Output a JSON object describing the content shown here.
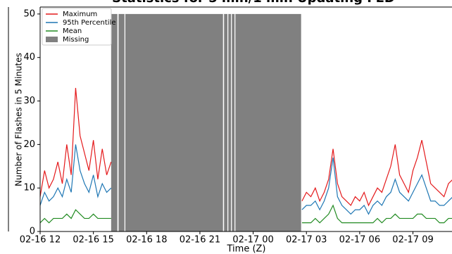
{
  "chart_data": {
    "type": "line",
    "title": "Statistics for 5 min/1 min Updating FED",
    "xlabel": "Time (Z)",
    "ylabel": "Number of Flashes in 5 Minutes",
    "x": [
      0,
      0.25,
      0.5,
      0.75,
      1,
      1.25,
      1.5,
      1.75,
      2,
      2.25,
      2.5,
      2.75,
      3,
      3.25,
      3.5,
      3.75,
      4,
      4.25,
      4.5,
      4.75,
      5,
      5.25,
      5.5,
      5.75,
      6,
      6.25,
      6.5,
      6.75,
      7,
      7.25,
      7.5,
      7.75,
      8,
      8.25,
      8.5,
      8.75,
      9,
      9.25,
      9.5,
      9.75,
      10,
      10.25,
      10.5,
      10.75,
      11,
      11.25,
      11.5,
      11.75,
      12,
      12.25,
      12.5,
      12.75,
      13,
      13.25,
      13.5,
      13.75,
      14,
      14.25,
      14.5,
      14.75,
      15,
      15.25,
      15.5,
      15.75,
      16,
      16.25,
      16.5,
      16.75,
      17,
      17.25,
      17.5,
      17.75,
      18,
      18.25,
      18.5,
      18.75,
      19,
      19.25,
      19.5,
      19.75,
      20,
      20.25,
      20.5,
      20.75,
      21,
      21.25,
      21.5,
      21.75,
      22,
      22.25,
      22.5,
      22.75,
      23,
      23.25
    ],
    "series": [
      {
        "name": "Maximum",
        "color": "#e41a1c",
        "values": [
          8,
          14,
          10,
          12,
          16,
          11,
          20,
          13,
          33,
          22,
          18,
          14,
          21,
          12,
          19,
          13,
          16,
          null,
          null,
          null,
          null,
          null,
          null,
          null,
          null,
          null,
          null,
          null,
          null,
          null,
          null,
          null,
          null,
          null,
          null,
          null,
          null,
          null,
          null,
          null,
          null,
          null,
          null,
          null,
          null,
          null,
          null,
          null,
          null,
          null,
          null,
          null,
          null,
          null,
          null,
          null,
          null,
          null,
          null,
          7,
          9,
          8,
          10,
          7,
          9,
          12,
          19,
          11,
          8,
          7,
          6,
          8,
          7,
          9,
          6,
          8,
          10,
          9,
          12,
          15,
          20,
          13,
          11,
          9,
          14,
          17,
          21,
          16,
          11,
          10,
          9,
          8,
          11,
          12
        ]
      },
      {
        "name": "95th Percentile",
        "color": "#1f77b4",
        "values": [
          6,
          9,
          7,
          8,
          10,
          8,
          12,
          9,
          20,
          14,
          11,
          9,
          13,
          8,
          11,
          9,
          10,
          null,
          null,
          null,
          null,
          null,
          null,
          null,
          null,
          null,
          null,
          null,
          null,
          null,
          null,
          null,
          null,
          null,
          null,
          null,
          null,
          null,
          null,
          null,
          null,
          null,
          null,
          null,
          null,
          null,
          null,
          null,
          null,
          null,
          null,
          null,
          null,
          null,
          null,
          null,
          null,
          null,
          null,
          5,
          6,
          6,
          7,
          5,
          7,
          10,
          17,
          8,
          6,
          5,
          4,
          5,
          5,
          6,
          4,
          6,
          7,
          6,
          8,
          9,
          12,
          9,
          8,
          7,
          9,
          11,
          13,
          10,
          7,
          7,
          6,
          6,
          7,
          8
        ]
      },
      {
        "name": "Mean",
        "color": "#228b22",
        "values": [
          2,
          3,
          2,
          3,
          3,
          3,
          4,
          3,
          5,
          4,
          3,
          3,
          4,
          3,
          3,
          3,
          3,
          null,
          null,
          null,
          null,
          null,
          null,
          null,
          null,
          null,
          null,
          null,
          null,
          null,
          null,
          null,
          null,
          null,
          null,
          null,
          null,
          null,
          null,
          null,
          null,
          null,
          null,
          null,
          null,
          null,
          null,
          null,
          null,
          null,
          null,
          null,
          null,
          null,
          null,
          null,
          null,
          null,
          null,
          2,
          2,
          2,
          3,
          2,
          3,
          4,
          6,
          3,
          2,
          2,
          2,
          2,
          2,
          2,
          2,
          2,
          3,
          2,
          3,
          3,
          4,
          3,
          3,
          3,
          3,
          4,
          4,
          3,
          3,
          3,
          2,
          2,
          3,
          3
        ]
      }
    ],
    "missing": {
      "name": "Missing",
      "color": "#808080",
      "value": 50,
      "ranges": [
        [
          4.0,
          4.35
        ],
        [
          4.42,
          4.75
        ],
        [
          4.8,
          10.3
        ],
        [
          10.36,
          10.55
        ],
        [
          10.6,
          10.75
        ],
        [
          10.8,
          10.95
        ],
        [
          11.0,
          14.7
        ]
      ]
    },
    "xlim": [
      0,
      23.2
    ],
    "ylim": [
      0,
      51.6
    ],
    "xticks": [
      {
        "value": 0,
        "label": "02-16 12"
      },
      {
        "value": 3,
        "label": "02-16 15"
      },
      {
        "value": 6,
        "label": "02-16 18"
      },
      {
        "value": 9,
        "label": "02-16 21"
      },
      {
        "value": 12,
        "label": "02-17 00"
      },
      {
        "value": 15,
        "label": "02-17 03"
      },
      {
        "value": 18,
        "label": "02-17 06"
      },
      {
        "value": 21,
        "label": "02-17 09"
      }
    ],
    "yticks": [
      0,
      10,
      20,
      30,
      40,
      50
    ],
    "legend": "upper left"
  }
}
